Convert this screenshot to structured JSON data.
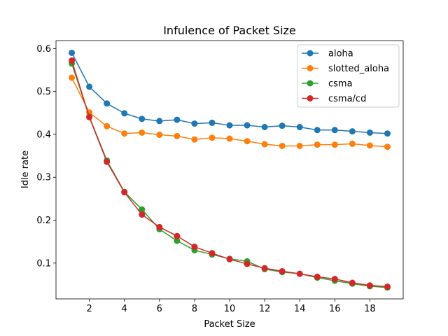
{
  "chart_data": {
    "type": "line",
    "title": "Infulence of Packet Size",
    "xlabel": "Packet Size",
    "ylabel": "Idle rate",
    "x": [
      1,
      2,
      3,
      4,
      5,
      6,
      7,
      8,
      9,
      10,
      11,
      12,
      13,
      14,
      15,
      16,
      17,
      18,
      19
    ],
    "xlim": [
      0.1,
      19.9
    ],
    "ylim": [
      0.0165,
      0.6185
    ],
    "xticks": [
      2,
      4,
      6,
      8,
      10,
      12,
      14,
      16,
      18
    ],
    "xtick_labels": [
      "2",
      "4",
      "6",
      "8",
      "10",
      "12",
      "14",
      "16",
      "18"
    ],
    "yticks": [
      0.1,
      0.2,
      0.3,
      0.4,
      0.5,
      0.6
    ],
    "ytick_labels": [
      "0.1",
      "0.2",
      "0.3",
      "0.4",
      "0.5",
      "0.6"
    ],
    "grid": false,
    "legend_position": "top-right",
    "series": [
      {
        "name": "aloha",
        "color": "#1f77b4",
        "values": [
          0.59,
          0.511,
          0.472,
          0.449,
          0.436,
          0.431,
          0.434,
          0.425,
          0.427,
          0.421,
          0.421,
          0.417,
          0.42,
          0.417,
          0.41,
          0.41,
          0.407,
          0.404,
          0.402
        ]
      },
      {
        "name": "slotted_aloha",
        "color": "#ff7f0e",
        "values": [
          0.532,
          0.451,
          0.419,
          0.402,
          0.404,
          0.399,
          0.396,
          0.388,
          0.392,
          0.39,
          0.384,
          0.377,
          0.373,
          0.373,
          0.376,
          0.376,
          0.378,
          0.374,
          0.371
        ]
      },
      {
        "name": "csma",
        "color": "#2ca02c",
        "values": [
          0.565,
          0.441,
          0.339,
          0.266,
          0.225,
          0.179,
          0.152,
          0.13,
          0.12,
          0.11,
          0.104,
          0.086,
          0.079,
          0.075,
          0.066,
          0.059,
          0.052,
          0.046,
          0.043
        ]
      },
      {
        "name": "csma/cd",
        "color": "#d62728",
        "values": [
          0.572,
          0.44,
          0.336,
          0.265,
          0.213,
          0.184,
          0.163,
          0.138,
          0.123,
          0.109,
          0.098,
          0.088,
          0.081,
          0.075,
          0.068,
          0.063,
          0.054,
          0.048,
          0.045
        ]
      }
    ]
  }
}
